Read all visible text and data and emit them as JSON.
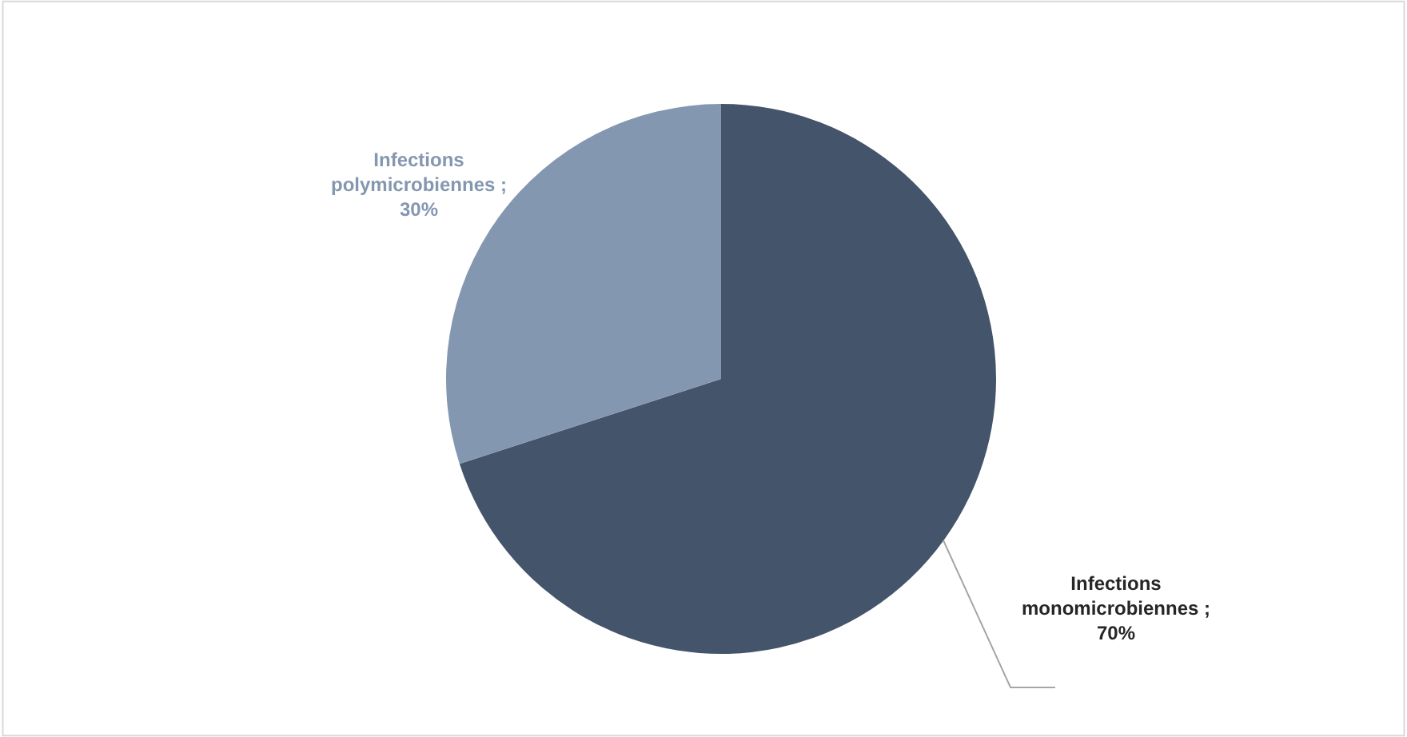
{
  "chart_data": {
    "type": "pie",
    "categories": [
      "Infections monomicrobiennes",
      "Infections polymicrobiennes"
    ],
    "values": [
      70,
      30
    ],
    "colors": [
      "#44546a",
      "#8497b0"
    ],
    "value_labels": [
      "; 70%",
      "; 30%"
    ],
    "legend": false
  }
}
